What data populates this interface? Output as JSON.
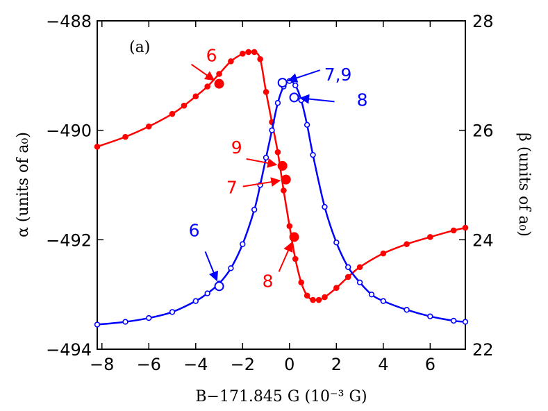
{
  "chart_data": {
    "type": "line",
    "panel_label": "(a)",
    "xlabel": "B−171.845 G (10⁻³ G)",
    "ylabel_left": "α (units of a₀)",
    "ylabel_right": "β (units of a₀)",
    "xlim": [
      -8.2,
      7.5
    ],
    "ylim_left": [
      -494,
      -488
    ],
    "ylim_right": [
      22,
      28
    ],
    "x_ticks": [
      -8,
      -6,
      -4,
      -2,
      0,
      2,
      4,
      6
    ],
    "x_tick_labels": [
      "−8",
      "−6",
      "−4",
      "−2",
      "0",
      "2",
      "4",
      "6"
    ],
    "y_left_ticks": [
      -494,
      -492,
      -490,
      -488
    ],
    "y_left_tick_labels": [
      "−494",
      "−492",
      "−490",
      "−488"
    ],
    "y_right_ticks": [
      22,
      24,
      26,
      28
    ],
    "y_right_tick_labels": [
      "22",
      "24",
      "26",
      "28"
    ],
    "grid": false,
    "series": [
      {
        "color": "#ff0000",
        "marker": "filled-circle",
        "axis": "left",
        "x": [
          -8.2,
          -7.0,
          -6.0,
          -5.0,
          -4.5,
          -4.0,
          -3.5,
          -3.0,
          -2.5,
          -2.0,
          -1.75,
          -1.5,
          -1.25,
          -1.0,
          -0.75,
          -0.5,
          -0.25,
          0.0,
          0.25,
          0.5,
          0.75,
          1.0,
          1.25,
          1.5,
          2.0,
          2.5,
          3.0,
          4.0,
          5.0,
          6.0,
          7.0,
          7.5
        ],
        "y": [
          -490.3,
          -490.12,
          -489.93,
          -489.7,
          -489.55,
          -489.38,
          -489.2,
          -488.97,
          -488.74,
          -488.6,
          -488.57,
          -488.57,
          -488.7,
          -489.3,
          -489.85,
          -490.4,
          -491.1,
          -491.75,
          -492.35,
          -492.78,
          -493.02,
          -493.1,
          -493.1,
          -493.05,
          -492.88,
          -492.68,
          -492.5,
          -492.25,
          -492.08,
          -491.95,
          -491.83,
          -491.78
        ]
      },
      {
        "color": "#0000ff",
        "marker": "open-circle",
        "axis": "right",
        "x": [
          -8.2,
          -7.0,
          -6.0,
          -5.0,
          -4.0,
          -3.5,
          -3.0,
          -2.5,
          -2.0,
          -1.5,
          -1.25,
          -1.0,
          -0.75,
          -0.5,
          -0.25,
          0.0,
          0.25,
          0.5,
          0.75,
          1.0,
          1.5,
          2.0,
          2.5,
          3.0,
          3.5,
          4.0,
          5.0,
          6.0,
          7.0,
          7.5
        ],
        "y": [
          22.45,
          22.5,
          22.57,
          22.68,
          22.88,
          23.02,
          23.2,
          23.48,
          23.92,
          24.55,
          25.0,
          25.5,
          26.0,
          26.5,
          26.8,
          26.9,
          26.82,
          26.55,
          26.1,
          25.55,
          24.6,
          23.95,
          23.5,
          23.22,
          23.0,
          22.88,
          22.72,
          22.6,
          22.52,
          22.5
        ]
      }
    ],
    "annotations": [
      {
        "text": "6",
        "color": "#ff0000",
        "series": 0,
        "x": -3.0,
        "y": -489.15,
        "hollow": false
      },
      {
        "text": "9",
        "color": "#ff0000",
        "series": 0,
        "x": -0.3,
        "y": -490.65,
        "hollow": false
      },
      {
        "text": "7",
        "color": "#ff0000",
        "series": 0,
        "x": -0.15,
        "y": -490.9,
        "hollow": false
      },
      {
        "text": "8",
        "color": "#ff0000",
        "series": 0,
        "x": 0.2,
        "y": -491.95,
        "hollow": false
      },
      {
        "text": "7,9",
        "color": "#0000ff",
        "series": 1,
        "x": -0.3,
        "y": 26.87,
        "hollow": true
      },
      {
        "text": "8",
        "color": "#0000ff",
        "series": 1,
        "x": 0.2,
        "y": 26.6,
        "hollow": true
      },
      {
        "text": "6",
        "color": "#0000ff",
        "series": 1,
        "x": -3.0,
        "y": 23.15,
        "hollow": true
      }
    ]
  }
}
